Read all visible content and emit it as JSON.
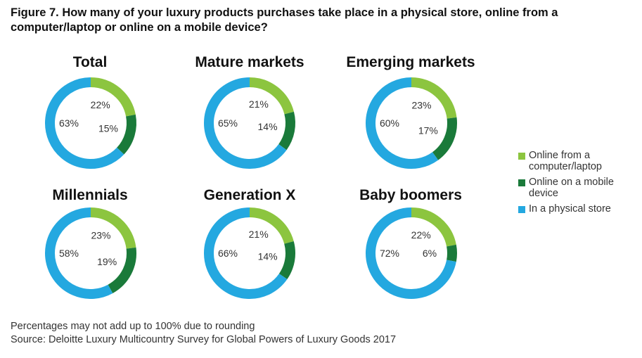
{
  "title": "Figure 7. How many of your luxury products purchases take place in a physical store, online from a computer/laptop or online on a mobile device?",
  "colors": {
    "computer": "#8cc53f",
    "mobile": "#1a7a3a",
    "store": "#24a8e0"
  },
  "legend": [
    {
      "label": "Online from a computer/laptop",
      "color": "#8cc53f"
    },
    {
      "label": "Online on a mobile device",
      "color": "#1a7a3a"
    },
    {
      "label": "In a physical store",
      "color": "#24a8e0"
    }
  ],
  "chart_data": [
    {
      "type": "pie",
      "title": "Total",
      "categories": [
        "Online from a computer/laptop",
        "Online on a mobile device",
        "In a physical store"
      ],
      "values": [
        22,
        15,
        63
      ],
      "labels": [
        "22%",
        "15%",
        "63%"
      ]
    },
    {
      "type": "pie",
      "title": "Mature markets",
      "categories": [
        "Online from a computer/laptop",
        "Online on a mobile device",
        "In a physical store"
      ],
      "values": [
        21,
        14,
        65
      ],
      "labels": [
        "21%",
        "14%",
        "65%"
      ]
    },
    {
      "type": "pie",
      "title": "Emerging markets",
      "categories": [
        "Online from a computer/laptop",
        "Online on a mobile device",
        "In a physical store"
      ],
      "values": [
        23,
        17,
        60
      ],
      "labels": [
        "23%",
        "17%",
        "60%"
      ]
    },
    {
      "type": "pie",
      "title": "Millennials",
      "categories": [
        "Online from a computer/laptop",
        "Online on a mobile device",
        "In a physical store"
      ],
      "values": [
        23,
        19,
        58
      ],
      "labels": [
        "23%",
        "19%",
        "58%"
      ]
    },
    {
      "type": "pie",
      "title": "Generation X",
      "categories": [
        "Online from a computer/laptop",
        "Online on a mobile device",
        "In a physical store"
      ],
      "values": [
        21,
        14,
        66
      ],
      "labels": [
        "21%",
        "14%",
        "66%"
      ]
    },
    {
      "type": "pie",
      "title": "Baby boomers",
      "categories": [
        "Online from a computer/laptop",
        "Online on a mobile device",
        "In a physical store"
      ],
      "values": [
        22,
        6,
        72
      ],
      "labels": [
        "22%",
        "6%",
        "72%"
      ]
    }
  ],
  "footer": {
    "note": "Percentages may not add up to 100% due to rounding",
    "source": "Source: Deloitte Luxury Multicountry Survey for Global Powers of Luxury Goods 2017"
  }
}
